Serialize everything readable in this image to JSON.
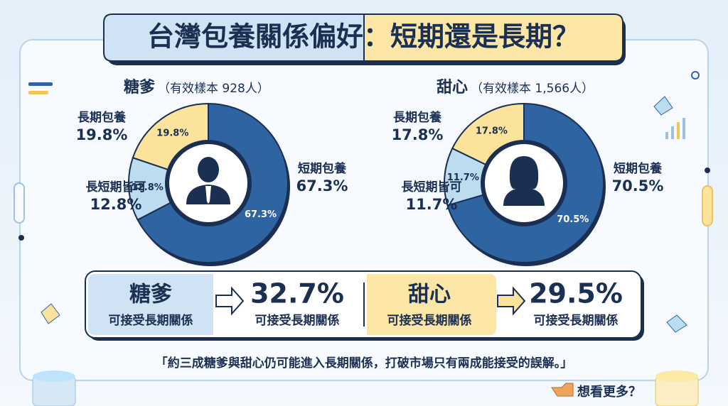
{
  "title": "台灣包養關係偏好：短期還是長期？",
  "chart_data": [
    {
      "type": "donut",
      "title": "糖爹",
      "subtitle": "（有效樣本 928人）",
      "categories": [
        "短期包養",
        "長短期皆可",
        "長期包養"
      ],
      "values": [
        67.3,
        12.8,
        19.8
      ],
      "value_labels": [
        "67.3%",
        "12.8%",
        "19.8%"
      ],
      "colors": [
        "#2f64a3",
        "#bcdcef",
        "#fbe39b"
      ]
    },
    {
      "type": "donut",
      "title": "甜心",
      "subtitle": "（有效樣本 1,566人）",
      "categories": [
        "短期包養",
        "長短期皆可",
        "長期包養"
      ],
      "values": [
        70.5,
        11.7,
        17.8
      ],
      "value_labels": [
        "70.5%",
        "11.7%",
        "17.8%"
      ],
      "colors": [
        "#2f64a3",
        "#bcdcef",
        "#fbe39b"
      ]
    }
  ],
  "summary": [
    {
      "group": "糖爹",
      "caption": "可接受長期關係",
      "value": "32.7%",
      "value_caption": "可接受長期關係"
    },
    {
      "group": "甜心",
      "caption": "可接受長期關係",
      "value": "29.5%",
      "value_caption": "可接受長期關係"
    }
  ],
  "quote": "「約三成糖爹與甜心仍可能進入長期關係，打破市場只有兩成能接受的誤解。」",
  "button": "想看更多？"
}
